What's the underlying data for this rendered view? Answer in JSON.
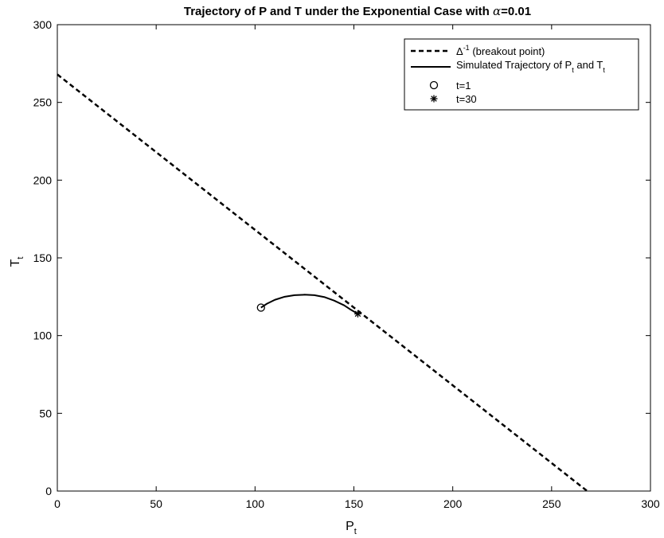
{
  "chart_data": {
    "type": "line",
    "title": "Trajectory of P and T under the Exponential Case with ",
    "title_symbol": "α",
    "title_suffix": "=0.01",
    "xlabel": "P",
    "xlabel_sub": "t",
    "ylabel": "T",
    "ylabel_sub": "t",
    "xlim": [
      0,
      300
    ],
    "ylim": [
      0,
      300
    ],
    "xticks": [
      0,
      50,
      100,
      150,
      200,
      250,
      300
    ],
    "yticks": [
      0,
      50,
      100,
      150,
      200,
      250,
      300
    ],
    "grid": false,
    "legend_position": "top-right",
    "series": [
      {
        "name": "(breakout point)",
        "name_symbol": "Δ",
        "name_sup": "-1",
        "style": "dashed",
        "x": [
          0,
          268
        ],
        "y": [
          268,
          0
        ]
      },
      {
        "name": "Simulated Trajectory of P",
        "name_sub1": "t",
        "name_mid": " and T",
        "name_sub2": "t",
        "style": "solid",
        "x": [
          103,
          106,
          110,
          115,
          120,
          125,
          130,
          135,
          140,
          145,
          148,
          152
        ],
        "y": [
          118,
          120.5,
          123,
          125,
          126,
          126.3,
          126,
          124.8,
          122.5,
          119.5,
          117,
          114
        ]
      },
      {
        "name": "t=1",
        "style": "marker-circle",
        "x": [
          103
        ],
        "y": [
          118
        ]
      },
      {
        "name": "t=30",
        "style": "marker-star",
        "x": [
          152
        ],
        "y": [
          114
        ]
      }
    ]
  }
}
